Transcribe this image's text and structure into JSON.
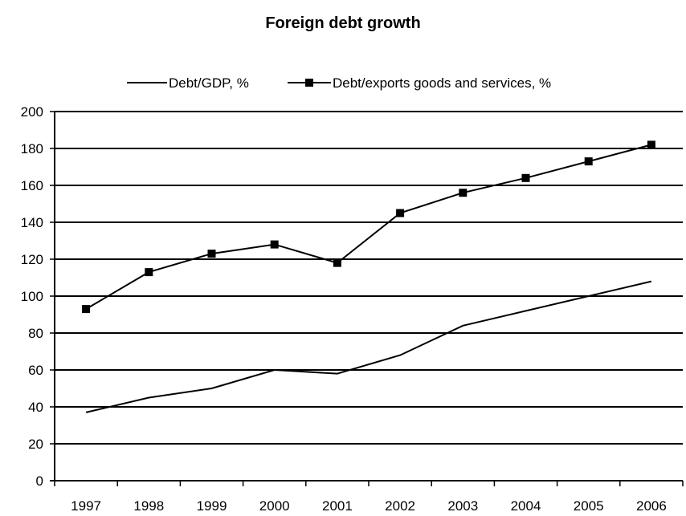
{
  "chart_data": {
    "type": "line",
    "title": "Foreign debt growth",
    "xlabel": "",
    "ylabel": "",
    "categories": [
      "1997",
      "1998",
      "1999",
      "2000",
      "2001",
      "2002",
      "2003",
      "2004",
      "2005",
      "2006"
    ],
    "y_ticks": [
      "0",
      "20",
      "40",
      "60",
      "80",
      "100",
      "120",
      "140",
      "160",
      "180",
      "200"
    ],
    "ylim": [
      0,
      200
    ],
    "grid": "horizontal",
    "legend_position": "top",
    "series": [
      {
        "name": "Debt/GDP, %",
        "marker": "none",
        "color": "#000000",
        "values": [
          37,
          45,
          50,
          60,
          58,
          68,
          84,
          92,
          100,
          108
        ]
      },
      {
        "name": "Debt/exports goods and services, %",
        "marker": "square",
        "color": "#000000",
        "values": [
          93,
          113,
          123,
          128,
          118,
          145,
          156,
          164,
          173,
          182
        ]
      }
    ]
  }
}
